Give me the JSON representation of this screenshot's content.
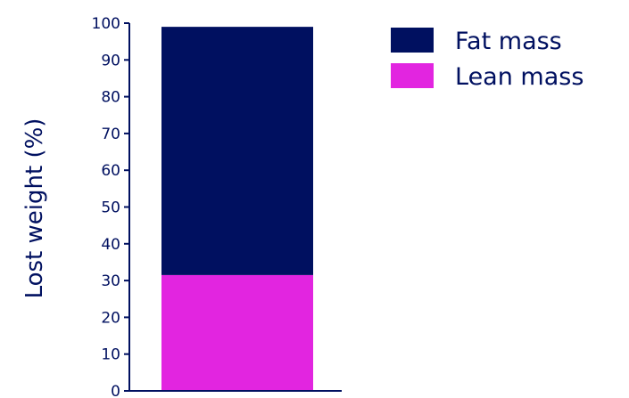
{
  "chart_data": {
    "type": "bar",
    "stacked": true,
    "categories": [
      ""
    ],
    "series": [
      {
        "name": "Lean mass",
        "values": [
          31.5
        ],
        "color": "#e225e0"
      },
      {
        "name": "Fat mass",
        "values": [
          67.5
        ],
        "color": "#001060"
      }
    ],
    "ylabel": "Lost weight (%)",
    "xlabel": "",
    "ylim": [
      0,
      100
    ],
    "yticks": [
      "0",
      "10",
      "20",
      "30",
      "40",
      "50",
      "60",
      "70",
      "80",
      "90",
      "100"
    ],
    "legend": {
      "placement": "top-right",
      "items": [
        "Fat mass",
        "Lean mass"
      ]
    },
    "axis_color": "#001060",
    "grid": false
  }
}
